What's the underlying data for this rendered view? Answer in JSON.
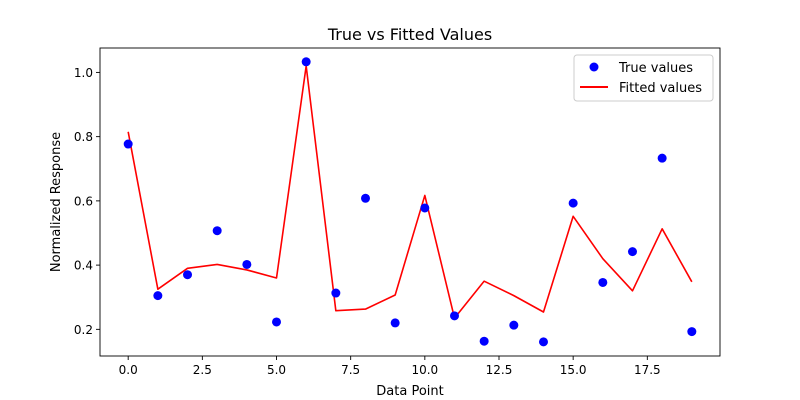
{
  "chart_data": {
    "type": "scatter+line",
    "title": "True vs Fitted Values",
    "xlabel": "Data Point",
    "ylabel": "Normalized Response",
    "xlim": [
      -0.95,
      19.95
    ],
    "ylim": [
      0.117,
      1.076
    ],
    "xticks": [
      0.0,
      2.5,
      5.0,
      7.5,
      10.0,
      12.5,
      15.0,
      17.5
    ],
    "xtick_labels": [
      "0.0",
      "2.5",
      "5.0",
      "7.5",
      "10.0",
      "12.5",
      "15.0",
      "17.5"
    ],
    "yticks": [
      0.2,
      0.4,
      0.6,
      0.8,
      1.0
    ],
    "ytick_labels": [
      "0.2",
      "0.4",
      "0.6",
      "0.8",
      "1.0"
    ],
    "grid": false,
    "legend_position": "top-right",
    "series": [
      {
        "name": "True values",
        "kind": "scatter",
        "color": "#0000ff",
        "x": [
          0,
          1,
          2,
          3,
          4,
          5,
          6,
          7,
          8,
          9,
          10,
          11,
          12,
          13,
          14,
          15,
          16,
          17,
          18,
          19
        ],
        "values": [
          0.777,
          0.305,
          0.37,
          0.507,
          0.402,
          0.223,
          1.033,
          0.313,
          0.608,
          0.22,
          0.578,
          0.242,
          0.163,
          0.213,
          0.161,
          0.593,
          0.346,
          0.442,
          0.733,
          0.193
        ]
      },
      {
        "name": "Fitted values",
        "kind": "line",
        "color": "#ff0000",
        "x": [
          0,
          1,
          2,
          3,
          4,
          5,
          6,
          7,
          8,
          9,
          10,
          11,
          12,
          13,
          14,
          15,
          16,
          17,
          18,
          19
        ],
        "values": [
          0.815,
          0.325,
          0.39,
          0.402,
          0.385,
          0.36,
          1.02,
          0.258,
          0.263,
          0.307,
          0.617,
          0.235,
          0.35,
          0.305,
          0.254,
          0.552,
          0.42,
          0.32,
          0.513,
          0.348
        ]
      }
    ]
  }
}
